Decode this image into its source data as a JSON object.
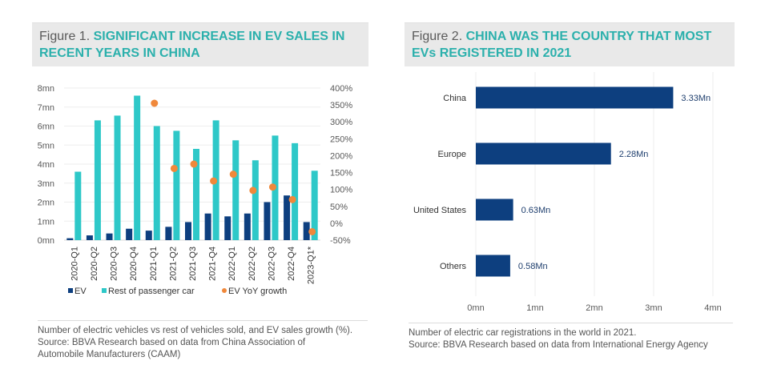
{
  "figure1": {
    "label": "Figure 1.",
    "title": "SIGNIFICANT INCREASE IN EV SALES IN RECENT YEARS IN CHINA",
    "caption_line1": "Number of electric vehicles vs rest of vehicles sold, and EV sales growth (%).",
    "caption_line2": "Source: BBVA Research based on data from China Association of",
    "caption_line3": "Automobile Manufacturers (CAAM)"
  },
  "figure2": {
    "label": "Figure 2.",
    "title": "CHINA WAS THE COUNTRY THAT MOST EVs REGISTERED IN 2021",
    "caption_line1": "Number of electric car registrations in the world in 2021.",
    "caption_line2": "Source: BBVA Research based on data from International Energy Agency"
  },
  "chart_data": [
    {
      "type": "bar",
      "title": "SIGNIFICANT INCREASE IN EV SALES IN RECENT YEARS IN CHINA",
      "categories": [
        "2020-Q1",
        "2020-Q2",
        "2020-Q3",
        "2020-Q4",
        "2021-Q1",
        "2021-Q2",
        "2021-Q3",
        "2021-Q4",
        "2022-Q1",
        "2022-Q2",
        "2022-Q3",
        "2022-Q4",
        "2023-Q1*"
      ],
      "series": [
        {
          "name": "EV",
          "axis": "left",
          "kind": "bar",
          "color": "#0d3f7f",
          "values": [
            0.1,
            0.25,
            0.35,
            0.6,
            0.5,
            0.7,
            0.95,
            1.4,
            1.25,
            1.4,
            2.0,
            2.35,
            0.95
          ]
        },
        {
          "name": "Rest of passenger car",
          "axis": "left",
          "kind": "bar",
          "color": "#2ec8c8",
          "values": [
            3.6,
            6.3,
            6.55,
            7.6,
            6.0,
            5.75,
            4.8,
            6.3,
            5.25,
            4.2,
            5.5,
            5.1,
            3.65
          ]
        },
        {
          "name": "EV YoY growth",
          "axis": "right",
          "kind": "scatter",
          "color": "#f0883a",
          "values": [
            null,
            null,
            null,
            null,
            355,
            162,
            175,
            125,
            145,
            97,
            107,
            70,
            -25
          ]
        }
      ],
      "left_axis": {
        "ylim": [
          0,
          8
        ],
        "ticks": [
          "0mn",
          "1mn",
          "2mn",
          "3mn",
          "4mn",
          "5mn",
          "6mn",
          "7mn",
          "8mn"
        ]
      },
      "right_axis": {
        "ylim": [
          -50,
          400
        ],
        "ticks": [
          "-50%",
          "0%",
          "50%",
          "100%",
          "150%",
          "200%",
          "250%",
          "300%",
          "350%",
          "400%"
        ]
      },
      "xlabel": "",
      "ylabel": "",
      "grid": true,
      "legend_position": "bottom"
    },
    {
      "type": "bar",
      "orientation": "horizontal",
      "title": "CHINA WAS THE COUNTRY THAT MOST EVs REGISTERED IN 2021",
      "categories": [
        "China",
        "Europe",
        "United States",
        "Others"
      ],
      "values": [
        3.33,
        2.28,
        0.63,
        0.58
      ],
      "data_labels": [
        "3.33Mn",
        "2.28Mn",
        "0.63Mn",
        "0.58Mn"
      ],
      "color": "#0d3f7f",
      "xlim": [
        0,
        4
      ],
      "xticks": [
        "0mn",
        "1mn",
        "2mn",
        "3mn",
        "4mn"
      ],
      "grid": true
    }
  ]
}
